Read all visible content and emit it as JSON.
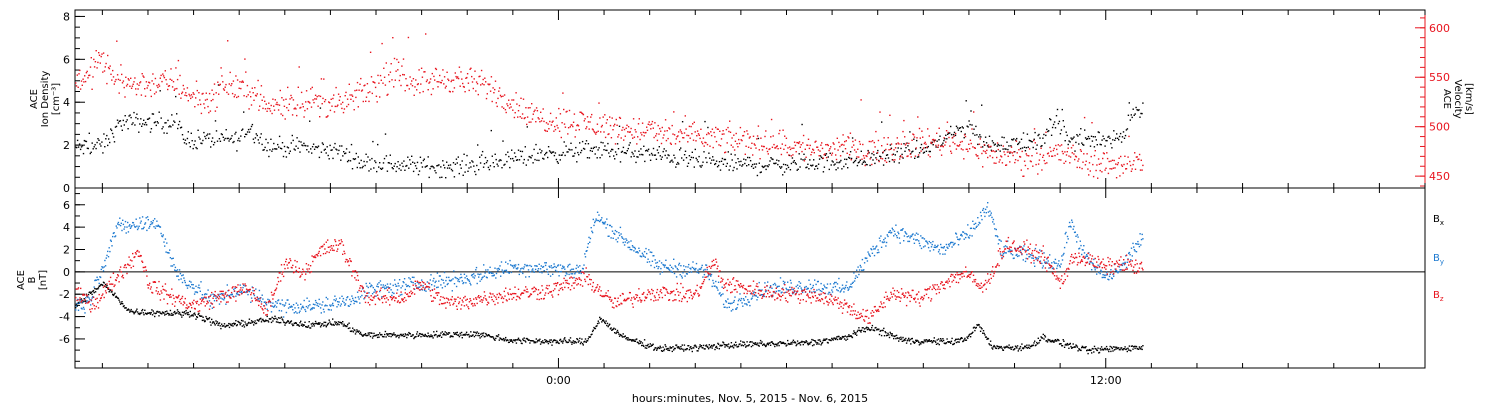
{
  "xaxis": {
    "label": "hours:minutes, Nov.  5, 2015 - Nov.  6, 2015",
    "tick_labels": [
      {
        "t": 0,
        "label": "0:00"
      },
      {
        "t": 12,
        "label": "12:00"
      }
    ],
    "range_hours": [
      -10.6,
      19.0
    ],
    "data_end_hours": 12.8
  },
  "chart_data": [
    {
      "type": "scatter",
      "title": "",
      "ylabel_left": [
        "ACE",
        "Ion Density",
        "[cm⁻³]"
      ],
      "ylabel_right": [
        "ACE",
        "Velocity",
        "[km/s]"
      ],
      "ylim_left": [
        0,
        8.3
      ],
      "ylim_right": [
        438,
        618
      ],
      "yticks_left": [
        0,
        2,
        4,
        6,
        8
      ],
      "yticks_right": [
        450,
        500,
        550,
        600
      ],
      "right_axis_color": "#e8141e",
      "series": [
        {
          "axis": "left",
          "color": "#000000",
          "knots": [
            [
              -10.6,
              1.9
            ],
            [
              -10.0,
              2.0
            ],
            [
              -9.6,
              3.1
            ],
            [
              -8.4,
              3.1
            ],
            [
              -8.2,
              2.3
            ],
            [
              -7.0,
              2.3
            ],
            [
              -6.8,
              2.9
            ],
            [
              -6.4,
              2.0
            ],
            [
              -5.0,
              1.8
            ],
            [
              -4.6,
              1.6
            ],
            [
              -4.3,
              1.2
            ],
            [
              -2.5,
              1.0
            ],
            [
              -1.5,
              1.2
            ],
            [
              -0.5,
              1.6
            ],
            [
              0.8,
              1.8
            ],
            [
              2.0,
              1.6
            ],
            [
              3.4,
              1.2
            ],
            [
              4.6,
              1.1
            ],
            [
              6.5,
              1.3
            ],
            [
              8.0,
              1.8
            ],
            [
              8.7,
              2.6
            ],
            [
              9.0,
              3.0
            ],
            [
              9.3,
              2.1
            ],
            [
              10.5,
              2.1
            ],
            [
              10.7,
              2.8
            ],
            [
              11.0,
              3.1
            ],
            [
              11.2,
              2.2
            ],
            [
              12.4,
              2.4
            ],
            [
              12.5,
              3.6
            ],
            [
              12.8,
              3.6
            ]
          ]
        },
        {
          "axis": "right",
          "color": "#e8141e",
          "knots": [
            [
              -10.6,
              550
            ],
            [
              -10.3,
              551
            ],
            [
              -10.1,
              570
            ],
            [
              -9.8,
              553
            ],
            [
              -9.4,
              543
            ],
            [
              -8.6,
              545
            ],
            [
              -8.4,
              546
            ],
            [
              -8.0,
              529
            ],
            [
              -7.6,
              528
            ],
            [
              -7.4,
              544
            ],
            [
              -6.8,
              538
            ],
            [
              -6.4,
              520
            ],
            [
              -5.5,
              528
            ],
            [
              -4.8,
              522
            ],
            [
              -4.4,
              532
            ],
            [
              -3.6,
              553
            ],
            [
              -3.0,
              545
            ],
            [
              -2.4,
              550
            ],
            [
              -1.5,
              540
            ],
            [
              -0.6,
              510
            ],
            [
              0.5,
              505
            ],
            [
              1.5,
              498
            ],
            [
              3.0,
              490
            ],
            [
              4.5,
              485
            ],
            [
              5.5,
              478
            ],
            [
              7.0,
              478
            ],
            [
              8.5,
              487
            ],
            [
              9.0,
              483
            ],
            [
              9.3,
              475
            ],
            [
              10.2,
              468
            ],
            [
              10.8,
              475
            ],
            [
              11.4,
              468
            ],
            [
              12.0,
              462
            ],
            [
              12.3,
              463
            ],
            [
              12.8,
              466
            ]
          ]
        }
      ]
    },
    {
      "type": "scatter",
      "title": "",
      "ylabel_left": [
        "ACE",
        "B",
        "[nT]"
      ],
      "ylim": [
        -8.6,
        7.5
      ],
      "yticks": [
        -6,
        -4,
        -2,
        0,
        2,
        4,
        6
      ],
      "zero_line": true,
      "legend_placement": "right",
      "series": [
        {
          "name": "Bx",
          "color": "#000000",
          "knots": [
            [
              -10.6,
              -3.0
            ],
            [
              -10.0,
              -1.0
            ],
            [
              -9.4,
              -3.5
            ],
            [
              -8.0,
              -3.7
            ],
            [
              -7.4,
              -4.8
            ],
            [
              -6.3,
              -4.2
            ],
            [
              -5.5,
              -4.7
            ],
            [
              -4.8,
              -4.5
            ],
            [
              -4.3,
              -5.6
            ],
            [
              -3.2,
              -5.6
            ],
            [
              -1.8,
              -5.5
            ],
            [
              -1.0,
              -6.1
            ],
            [
              0.6,
              -6.2
            ],
            [
              0.9,
              -4.1
            ],
            [
              1.4,
              -5.8
            ],
            [
              2.2,
              -6.8
            ],
            [
              3.2,
              -6.7
            ],
            [
              3.6,
              -6.5
            ],
            [
              5.5,
              -6.3
            ],
            [
              6.3,
              -5.8
            ],
            [
              6.8,
              -4.9
            ],
            [
              7.6,
              -6.1
            ],
            [
              8.6,
              -6.2
            ],
            [
              8.9,
              -6.0
            ],
            [
              9.2,
              -4.7
            ],
            [
              9.5,
              -6.7
            ],
            [
              10.3,
              -6.7
            ],
            [
              10.6,
              -5.8
            ],
            [
              11.0,
              -6.3
            ],
            [
              11.6,
              -7.0
            ],
            [
              11.9,
              -6.9
            ],
            [
              12.2,
              -6.8
            ],
            [
              12.8,
              -6.7
            ]
          ]
        },
        {
          "name": "By",
          "color": "#1e7ad0",
          "knots": [
            [
              -10.6,
              -3.0
            ],
            [
              -10.3,
              -2.6
            ],
            [
              -9.7,
              4.0
            ],
            [
              -9.0,
              4.4
            ],
            [
              -8.8,
              4.5
            ],
            [
              -8.4,
              0.0
            ],
            [
              -7.6,
              -2.6
            ],
            [
              -7.0,
              -1.5
            ],
            [
              -6.2,
              -3.0
            ],
            [
              -5.2,
              -3.0
            ],
            [
              -4.6,
              -2.5
            ],
            [
              -4.2,
              -1.6
            ],
            [
              -3.0,
              -1.0
            ],
            [
              -2.0,
              -0.5
            ],
            [
              -1.0,
              0.5
            ],
            [
              0.5,
              0.2
            ],
            [
              0.8,
              5.0
            ],
            [
              1.4,
              3.0
            ],
            [
              2.2,
              0.5
            ],
            [
              3.2,
              0.2
            ],
            [
              3.4,
              -1.0
            ],
            [
              3.7,
              -3.0
            ],
            [
              4.5,
              -1.5
            ],
            [
              5.5,
              -1.2
            ],
            [
              6.3,
              -1.5
            ],
            [
              6.8,
              1.5
            ],
            [
              7.3,
              3.8
            ],
            [
              7.8,
              3.0
            ],
            [
              8.4,
              2.0
            ],
            [
              9.0,
              3.5
            ],
            [
              9.4,
              5.8
            ],
            [
              9.7,
              2.0
            ],
            [
              10.6,
              1.2
            ],
            [
              11.0,
              0.7
            ],
            [
              11.2,
              4.5
            ],
            [
              11.6,
              1.0
            ],
            [
              12.0,
              -0.5
            ],
            [
              12.4,
              0.7
            ],
            [
              12.6,
              2.2
            ],
            [
              12.8,
              3.0
            ]
          ]
        },
        {
          "name": "Bz",
          "color": "#e8141e",
          "knots": [
            [
              -10.6,
              -2.0
            ],
            [
              -10.2,
              -2.8
            ],
            [
              -9.5,
              0.5
            ],
            [
              -9.2,
              2.0
            ],
            [
              -9.0,
              -1.0
            ],
            [
              -8.6,
              -2.0
            ],
            [
              -8.0,
              -3.0
            ],
            [
              -7.5,
              -2.2
            ],
            [
              -6.8,
              -1.5
            ],
            [
              -6.4,
              -3.5
            ],
            [
              -6.0,
              1.0
            ],
            [
              -5.6,
              0.0
            ],
            [
              -5.2,
              2.0
            ],
            [
              -4.8,
              2.5
            ],
            [
              -4.5,
              0.0
            ],
            [
              -4.2,
              -2.3
            ],
            [
              -3.4,
              -2.2
            ],
            [
              -3.0,
              -1.0
            ],
            [
              -2.6,
              -2.5
            ],
            [
              -2.2,
              -2.8
            ],
            [
              -1.8,
              -2.4
            ],
            [
              -1.2,
              -2.0
            ],
            [
              -0.2,
              -1.6
            ],
            [
              0.6,
              -0.5
            ],
            [
              1.2,
              -2.8
            ],
            [
              2.0,
              -1.8
            ],
            [
              3.0,
              -2.0
            ],
            [
              3.4,
              1.0
            ],
            [
              3.6,
              -1.0
            ],
            [
              4.6,
              -1.8
            ],
            [
              5.6,
              -2.0
            ],
            [
              6.2,
              -2.8
            ],
            [
              6.8,
              -4.2
            ],
            [
              7.3,
              -1.8
            ],
            [
              7.9,
              -2.4
            ],
            [
              8.4,
              -1.0
            ],
            [
              8.9,
              0.0
            ],
            [
              9.3,
              -1.5
            ],
            [
              9.8,
              2.5
            ],
            [
              10.6,
              1.5
            ],
            [
              11.0,
              -1.0
            ],
            [
              11.3,
              1.5
            ],
            [
              12.0,
              0.5
            ],
            [
              12.4,
              0.8
            ],
            [
              12.8,
              0.3
            ]
          ]
        }
      ]
    }
  ]
}
